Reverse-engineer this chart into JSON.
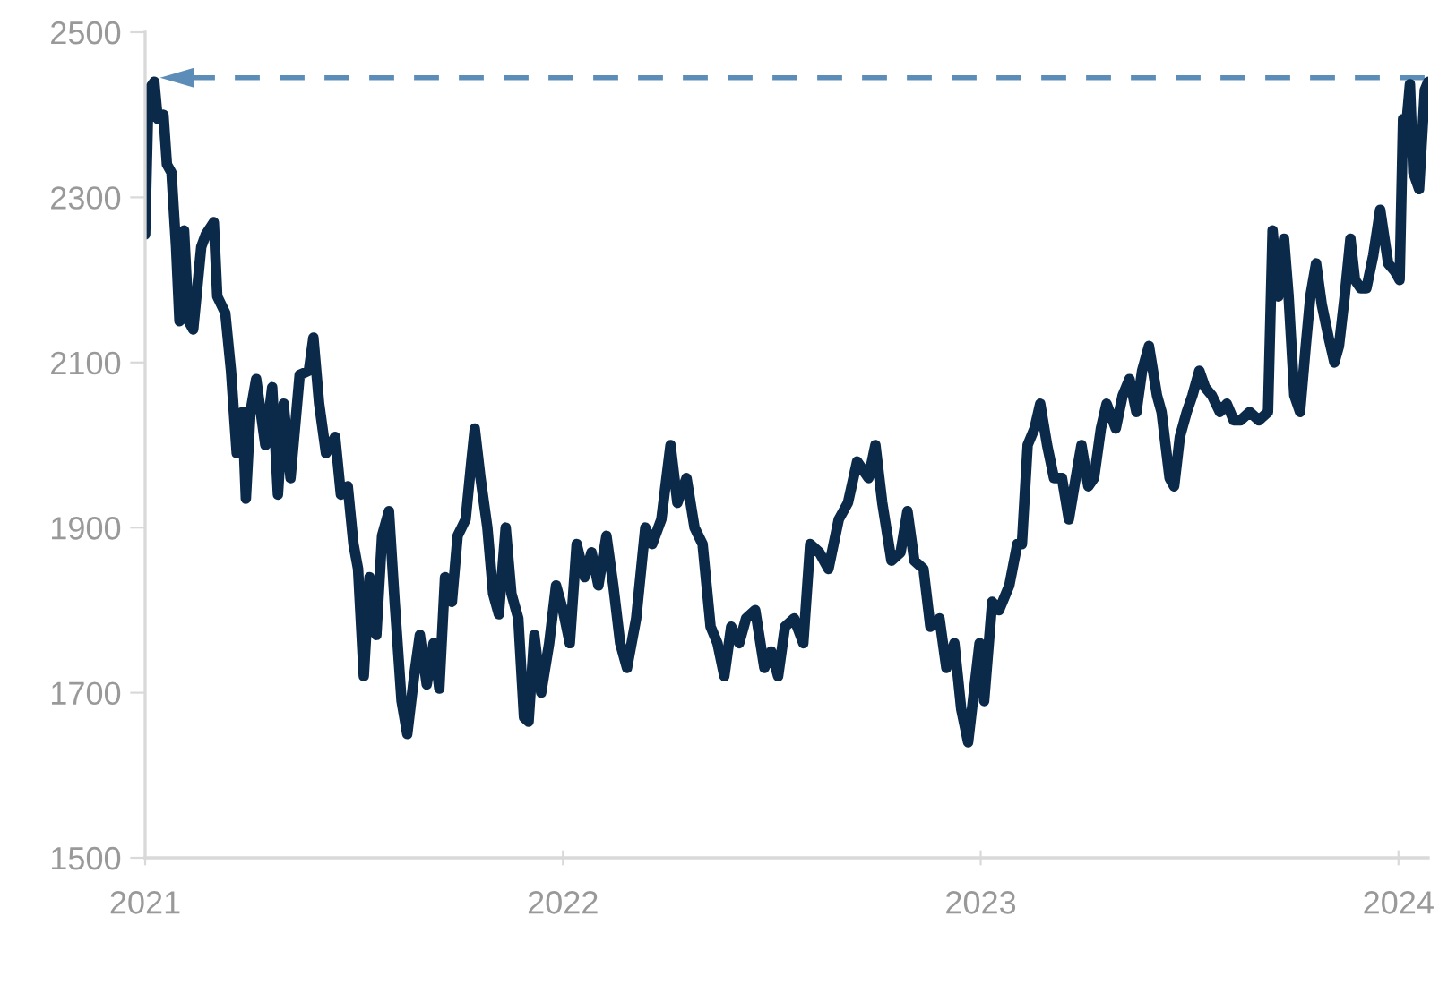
{
  "chart_data": {
    "type": "line",
    "x": [
      "2021-01-01",
      "2021-01-04",
      "2021-01-09",
      "2021-01-12",
      "2021-01-17",
      "2021-01-20",
      "2021-01-24",
      "2021-01-28",
      "2021-01-31",
      "2021-02-04",
      "2021-02-08",
      "2021-02-12",
      "2021-02-19",
      "2021-02-23",
      "2021-03-02",
      "2021-03-05",
      "2021-03-12",
      "2021-03-17",
      "2021-03-22",
      "2021-03-27",
      "2021-03-30",
      "2021-04-03",
      "2021-04-08",
      "2021-04-16",
      "2021-04-22",
      "2021-04-27",
      "2021-05-02",
      "2021-05-08",
      "2021-05-16",
      "2021-05-24",
      "2021-05-28",
      "2021-06-02",
      "2021-06-08",
      "2021-06-16",
      "2021-06-21",
      "2021-06-27",
      "2021-07-02",
      "2021-07-06",
      "2021-07-11",
      "2021-07-16",
      "2021-07-22",
      "2021-07-27",
      "2021-08-02",
      "2021-08-07",
      "2021-08-13",
      "2021-08-18",
      "2021-08-24",
      "2021-08-29",
      "2021-09-04",
      "2021-09-10",
      "2021-09-15",
      "2021-09-20",
      "2021-09-26",
      "2021-10-01",
      "2021-10-08",
      "2021-10-13",
      "2021-10-16",
      "2021-10-21",
      "2021-10-27",
      "2021-11-01",
      "2021-11-06",
      "2021-11-12",
      "2021-11-17",
      "2021-11-23",
      "2021-11-28",
      "2021-12-02",
      "2021-12-07",
      "2021-12-13",
      "2021-12-20",
      "2021-12-26",
      "2022-01-01",
      "2022-01-07",
      "2022-01-13",
      "2022-01-20",
      "2022-01-26",
      "2022-02-01",
      "2022-02-08",
      "2022-02-14",
      "2022-02-20",
      "2022-02-26",
      "2022-03-06",
      "2022-03-14",
      "2022-03-20",
      "2022-03-28",
      "2022-04-05",
      "2022-04-11",
      "2022-04-19",
      "2022-04-26",
      "2022-05-03",
      "2022-05-10",
      "2022-05-16",
      "2022-05-22",
      "2022-05-28",
      "2022-06-04",
      "2022-06-10",
      "2022-06-18",
      "2022-06-26",
      "2022-07-02",
      "2022-07-08",
      "2022-07-14",
      "2022-07-22",
      "2022-07-30",
      "2022-08-05",
      "2022-08-13",
      "2022-08-21",
      "2022-08-30",
      "2022-09-07",
      "2022-09-15",
      "2022-09-25",
      "2022-10-01",
      "2022-10-07",
      "2022-10-15",
      "2022-10-23",
      "2022-10-29",
      "2022-11-04",
      "2022-11-12",
      "2022-11-18",
      "2022-11-26",
      "2022-12-02",
      "2022-12-09",
      "2022-12-15",
      "2022-12-21",
      "2022-12-26",
      "2022-12-31",
      "2023-01-04",
      "2023-01-11",
      "2023-01-17",
      "2023-01-26",
      "2023-02-02",
      "2023-02-06",
      "2023-02-11",
      "2023-02-17",
      "2023-02-22",
      "2023-02-28",
      "2023-03-06",
      "2023-03-13",
      "2023-03-19",
      "2023-03-25",
      "2023-03-30",
      "2023-04-05",
      "2023-04-10",
      "2023-04-16",
      "2023-04-21",
      "2023-04-29",
      "2023-05-05",
      "2023-05-11",
      "2023-05-17",
      "2023-05-22",
      "2023-05-28",
      "2023-06-04",
      "2023-06-08",
      "2023-06-15",
      "2023-06-19",
      "2023-06-24",
      "2023-06-30",
      "2023-07-05",
      "2023-07-11",
      "2023-07-16",
      "2023-07-22",
      "2023-07-29",
      "2023-08-04",
      "2023-08-10",
      "2023-08-16",
      "2023-08-24",
      "2023-09-01",
      "2023-09-09",
      "2023-09-13",
      "2023-09-18",
      "2023-09-23",
      "2023-09-27",
      "2023-10-02",
      "2023-10-07",
      "2023-10-12",
      "2023-10-16",
      "2023-10-21",
      "2023-10-26",
      "2023-11-01",
      "2023-11-06",
      "2023-11-10",
      "2023-11-15",
      "2023-11-20",
      "2023-11-24",
      "2023-11-29",
      "2023-12-04",
      "2023-12-10",
      "2023-12-16",
      "2023-12-23",
      "2023-12-29",
      "2024-01-02",
      "2024-01-05",
      "2024-01-08",
      "2024-01-11",
      "2024-01-14",
      "2024-01-19",
      "2024-01-24",
      "2024-01-27"
    ],
    "series": [
      {
        "color": "#0b2a4a",
        "values": [
          2255,
          2430,
          2440,
          2395,
          2400,
          2340,
          2330,
          2240,
          2150,
          2260,
          2150,
          2140,
          2240,
          2255,
          2270,
          2180,
          2160,
          2090,
          1990,
          2040,
          1935,
          2040,
          2080,
          2000,
          2070,
          1940,
          2050,
          1960,
          2085,
          2090,
          2130,
          2050,
          1990,
          2010,
          1940,
          1950,
          1880,
          1850,
          1720,
          1840,
          1770,
          1890,
          1920,
          1810,
          1690,
          1650,
          1720,
          1770,
          1710,
          1760,
          1705,
          1840,
          1810,
          1890,
          1910,
          1980,
          2020,
          1960,
          1900,
          1820,
          1795,
          1900,
          1820,
          1790,
          1670,
          1665,
          1770,
          1700,
          1760,
          1830,
          1800,
          1760,
          1880,
          1840,
          1870,
          1830,
          1890,
          1830,
          1760,
          1730,
          1790,
          1900,
          1880,
          1910,
          2000,
          1930,
          1960,
          1900,
          1880,
          1780,
          1760,
          1720,
          1780,
          1760,
          1790,
          1800,
          1730,
          1750,
          1720,
          1780,
          1790,
          1760,
          1880,
          1870,
          1850,
          1910,
          1930,
          1980,
          1960,
          2000,
          1930,
          1860,
          1870,
          1920,
          1860,
          1850,
          1780,
          1790,
          1730,
          1760,
          1680,
          1640,
          1700,
          1760,
          1690,
          1810,
          1800,
          1830,
          1880,
          1880,
          2000,
          2020,
          2050,
          2000,
          1960,
          1960,
          1910,
          1960,
          2000,
          1950,
          1960,
          2020,
          2050,
          2020,
          2060,
          2080,
          2040,
          2090,
          2120,
          2060,
          2040,
          1960,
          1950,
          2010,
          2040,
          2060,
          2090,
          2070,
          2060,
          2040,
          2050,
          2030,
          2030,
          2040,
          2030,
          2040,
          2260,
          2180,
          2250,
          2180,
          2060,
          2040,
          2120,
          2180,
          2220,
          2170,
          2130,
          2100,
          2120,
          2180,
          2250,
          2200,
          2190,
          2190,
          2230,
          2285,
          2220,
          2210,
          2200,
          2395,
          2390,
          2437,
          2330,
          2310,
          2430,
          2440
        ]
      }
    ],
    "xlim": [
      "2021-01-01",
      "2024-01-27"
    ],
    "xticks": [
      "2021",
      "2022",
      "2023",
      "2024"
    ],
    "ylim": [
      1500,
      2500
    ],
    "yticks": [
      1500,
      1700,
      1900,
      2100,
      2300,
      2500
    ],
    "ref_lines": [
      {
        "axis": "y",
        "value": 2445,
        "color": "#5b8db8",
        "line_style": "dashed"
      }
    ],
    "grid": false,
    "legend": false
  }
}
